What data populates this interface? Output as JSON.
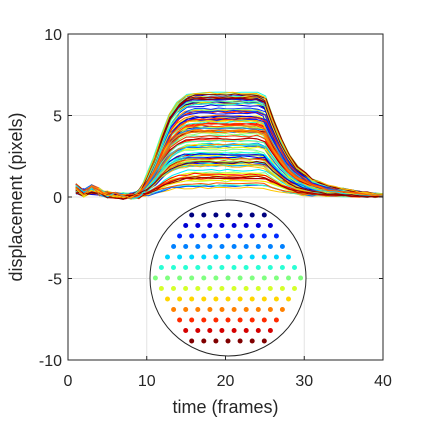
{
  "chart_data": {
    "type": "line",
    "title": "",
    "xlabel": "time (frames)",
    "ylabel": "displacement (pixels)",
    "xlim": [
      0,
      40
    ],
    "ylim": [
      -10,
      10
    ],
    "xticks": [
      0,
      10,
      20,
      30,
      40
    ],
    "yticks": [
      -10,
      -5,
      0,
      5,
      10
    ],
    "grid": true,
    "legend": "none",
    "num_series": 127,
    "series_colormap": "jet",
    "profile": {
      "x": [
        1,
        2,
        3,
        4,
        5,
        6,
        7,
        8,
        9,
        10,
        11,
        12,
        13,
        14,
        15,
        16,
        17,
        18,
        19,
        20,
        21,
        22,
        23,
        24,
        25,
        26,
        27,
        28,
        29,
        30,
        31,
        32,
        33,
        34,
        35,
        36,
        37,
        38,
        39,
        40
      ],
      "y": [
        0.5,
        0.25,
        0.45,
        0.3,
        0.15,
        0.1,
        0.05,
        0.05,
        0.15,
        0.6,
        1.2,
        1.95,
        2.6,
        2.95,
        3.15,
        3.2,
        3.22,
        3.22,
        3.22,
        3.22,
        3.22,
        3.22,
        3.22,
        3.22,
        3.1,
        2.4,
        1.8,
        1.3,
        0.95,
        0.75,
        0.55,
        0.45,
        0.35,
        0.3,
        0.25,
        0.2,
        0.16,
        0.13,
        0.1,
        0.08
      ]
    },
    "plateau_min": 0.5,
    "plateau_max": 6.4,
    "inset": {
      "type": "hexagonal-marker-grid",
      "rows": 13,
      "markers": 127,
      "colormap": "jet",
      "color_order": "top-blue-to-bottom-red"
    }
  }
}
